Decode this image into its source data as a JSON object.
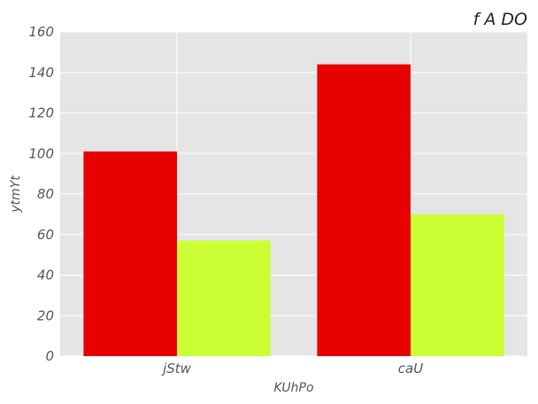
{
  "chart_data": {
    "type": "bar",
    "title": "f A DO",
    "xlabel": "KUhPo",
    "ylabel": "ytmYt",
    "categories": [
      "jStw",
      "caU"
    ],
    "series": [
      {
        "values": [
          101,
          144
        ],
        "color": "#e60000"
      },
      {
        "values": [
          57,
          70
        ],
        "color": "#ccff33"
      }
    ],
    "ylim": [
      0,
      160
    ],
    "yticks": [
      0,
      20,
      40,
      60,
      80,
      100,
      120,
      140,
      160
    ],
    "grid": true,
    "plot_background": "#e5e5e5",
    "grid_color": "#ffffff"
  }
}
